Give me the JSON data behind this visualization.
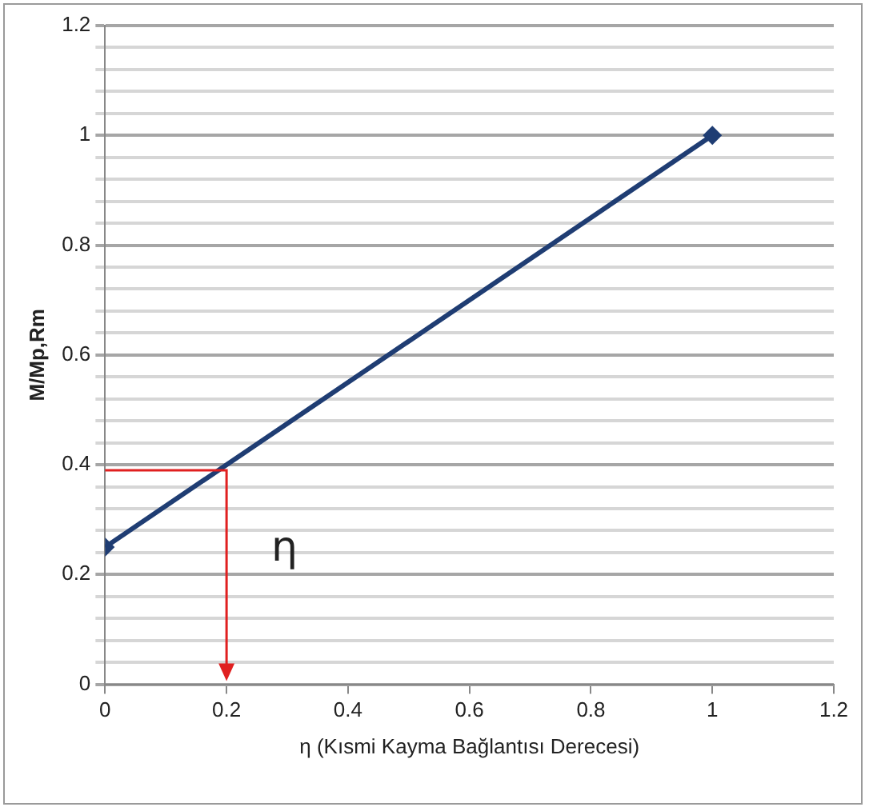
{
  "chart_data": {
    "type": "line",
    "xlabel": "η (Kısmi Kayma Bağlantısı Derecesi)",
    "ylabel": "M/Mp,Rm",
    "x": [
      0,
      1
    ],
    "series": [
      {
        "color": "#1f3d73",
        "values": [
          0.25,
          1
        ]
      }
    ],
    "xlim": [
      0,
      1.2
    ],
    "xticks": [
      0,
      0.2,
      0.4,
      0.6,
      0.8,
      1,
      1.2
    ],
    "ylim": [
      0,
      1.2
    ],
    "yticks": [
      0,
      {
        "value": 0.04,
        "label": null
      },
      {
        "value": 0.08,
        "label": null
      },
      {
        "value": 0.12,
        "label": null
      },
      {
        "value": 0.16,
        "label": null
      },
      0.2,
      {
        "value": 0.24,
        "label": null
      },
      {
        "value": 0.28,
        "label": null
      },
      {
        "value": 0.32,
        "label": null
      },
      {
        "value": 0.36,
        "label": null
      },
      0.4,
      {
        "value": 0.44,
        "label": null
      },
      {
        "value": 0.48,
        "label": null
      },
      {
        "value": 0.52,
        "label": null
      },
      {
        "value": 0.56,
        "label": null
      },
      0.6,
      {
        "value": 0.64,
        "label": null
      },
      {
        "value": 0.68,
        "label": null
      },
      {
        "value": 0.72,
        "label": null
      },
      {
        "value": 0.76,
        "label": null
      },
      0.8,
      {
        "value": 0.84,
        "label": null
      },
      {
        "value": 0.88,
        "label": null
      },
      {
        "value": 0.92,
        "label": null
      },
      {
        "value": 0.96,
        "label": null
      },
      1,
      {
        "value": 1.04,
        "label": null
      },
      {
        "value": 1.08,
        "label": null
      },
      {
        "value": 1.12,
        "label": null
      },
      {
        "value": 1.16,
        "label": null
      },
      1.2
    ],
    "grid": "y",
    "marker": "diamond",
    "line_style": "solid",
    "legend": false,
    "annotations": [
      {
        "text": "η",
        "x": 0.2,
        "y": 0.39
      }
    ]
  }
}
